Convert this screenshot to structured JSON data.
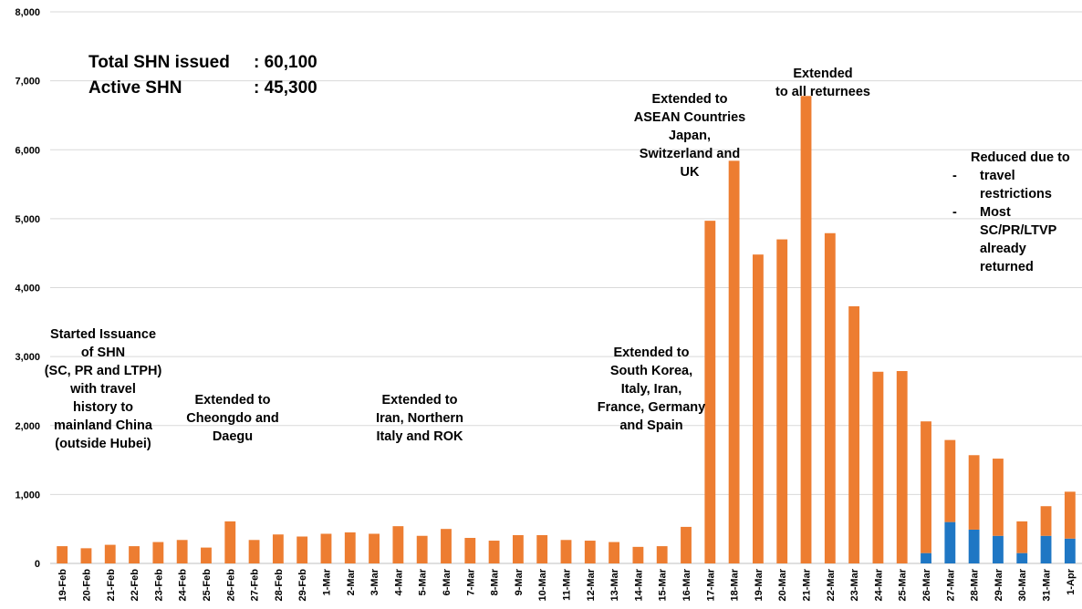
{
  "summary": {
    "total_label": "Total SHN issued",
    "total_value": ": 60,100",
    "active_label": "Active SHN",
    "active_value": ": 45,300"
  },
  "annotations": {
    "a1": [
      "Started Issuance",
      "of SHN",
      "(SC, PR and LTPH)",
      "with travel",
      "history to",
      "mainland China",
      "(outside Hubei)"
    ],
    "a2": [
      "Extended to",
      "Cheongdo and",
      "Daegu"
    ],
    "a3": [
      "Extended to",
      "Iran, Northern",
      "Italy and ROK"
    ],
    "a4": [
      "Extended to",
      "South Korea,",
      "Italy, Iran,",
      "France, Germany",
      "and Spain"
    ],
    "a5": [
      "Extended to",
      "ASEAN Countries",
      "Japan,",
      "Switzerland and",
      "UK"
    ],
    "a6": [
      "Extended",
      "to all returnees"
    ],
    "a7_title": "Reduced due to",
    "a7_bullets": [
      {
        "dash": "-",
        "lines": [
          "travel",
          "restrictions"
        ]
      },
      {
        "dash": "-",
        "lines": [
          "Most",
          "SC/PR/LTVP",
          "already",
          "returned"
        ]
      }
    ]
  },
  "chart_data": {
    "type": "bar",
    "stacked": true,
    "ylim": [
      0,
      8000
    ],
    "yticks": [
      "0",
      "1,000",
      "2,000",
      "3,000",
      "4,000",
      "5,000",
      "6,000",
      "7,000",
      "8,000"
    ],
    "grid": true,
    "categories": [
      "19-Feb",
      "20-Feb",
      "21-Feb",
      "22-Feb",
      "23-Feb",
      "24-Feb",
      "25-Feb",
      "26-Feb",
      "27-Feb",
      "28-Feb",
      "29-Feb",
      "1-Mar",
      "2-Mar",
      "3-Mar",
      "4-Mar",
      "5-Mar",
      "6-Mar",
      "7-Mar",
      "8-Mar",
      "9-Mar",
      "10-Mar",
      "11-Mar",
      "12-Mar",
      "13-Mar",
      "14-Mar",
      "15-Mar",
      "16-Mar",
      "17-Mar",
      "18-Mar",
      "19-Mar",
      "20-Mar",
      "21-Mar",
      "22-Mar",
      "23-Mar",
      "24-Mar",
      "25-Mar",
      "26-Mar",
      "27-Mar",
      "28-Mar",
      "29-Mar",
      "30-Mar",
      "31-Mar",
      "1-Apr"
    ],
    "series": [
      {
        "color": "#1f77c4",
        "values": [
          0,
          0,
          0,
          0,
          0,
          0,
          0,
          0,
          0,
          0,
          0,
          0,
          0,
          0,
          0,
          0,
          0,
          0,
          0,
          0,
          0,
          0,
          0,
          0,
          0,
          0,
          0,
          0,
          0,
          0,
          0,
          0,
          0,
          0,
          0,
          0,
          150,
          600,
          490,
          400,
          150,
          400,
          360
        ]
      },
      {
        "color": "#ed7d31",
        "values": [
          250,
          220,
          270,
          250,
          310,
          340,
          230,
          610,
          340,
          420,
          390,
          430,
          450,
          430,
          540,
          400,
          500,
          370,
          330,
          410,
          410,
          340,
          330,
          310,
          240,
          250,
          530,
          4970,
          5840,
          4480,
          4700,
          6780,
          4790,
          3730,
          2780,
          2790,
          1910,
          1190,
          1080,
          1120,
          460,
          430,
          680
        ]
      }
    ]
  }
}
